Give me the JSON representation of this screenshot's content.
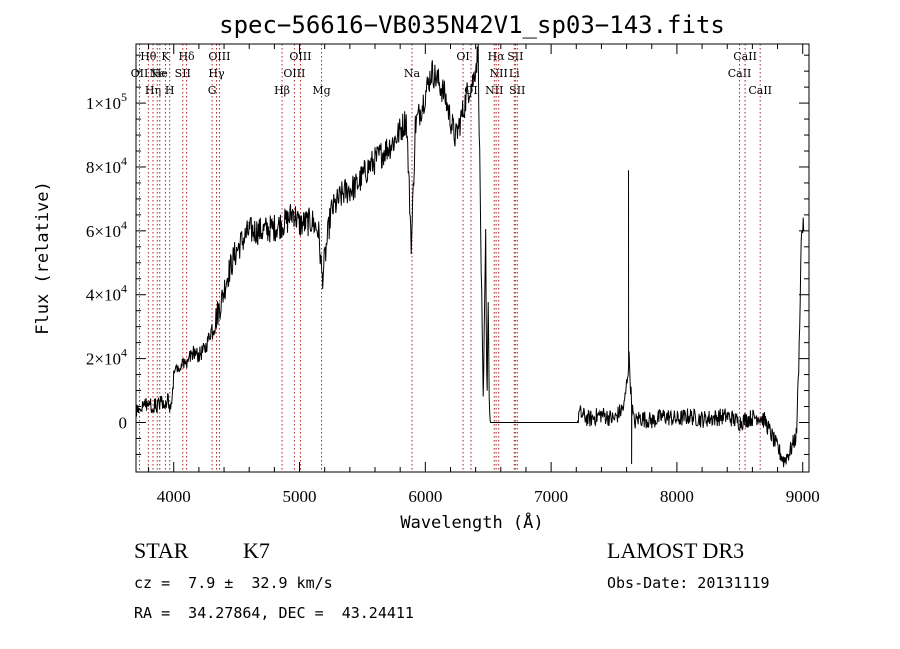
{
  "chart_data": {
    "type": "line",
    "title": "spec−56616−VB035N42V1_sp03−143.fits",
    "xlabel": "Wavelength (Å)",
    "ylabel": "Flux (relative)",
    "xlim": [
      3700,
      9050
    ],
    "ylim": [
      -15500,
      118500
    ],
    "xticks": [
      {
        "value": 4000,
        "label": "4000"
      },
      {
        "value": 5000,
        "label": "5000"
      },
      {
        "value": 6000,
        "label": "6000"
      },
      {
        "value": 7000,
        "label": "7000"
      },
      {
        "value": 8000,
        "label": "8000"
      },
      {
        "value": 9000,
        "label": "9000"
      }
    ],
    "yticks": [
      {
        "value": 0,
        "mant": "0",
        "exp": ""
      },
      {
        "value": 20000,
        "mant": "2×10",
        "exp": "4"
      },
      {
        "value": 40000,
        "mant": "4×10",
        "exp": "4"
      },
      {
        "value": 60000,
        "mant": "6×10",
        "exp": "4"
      },
      {
        "value": 80000,
        "mant": "8×10",
        "exp": "4"
      },
      {
        "value": 100000,
        "mant": "1×10",
        "exp": "5"
      }
    ],
    "spectrum_anchors": [
      [
        3700,
        3000
      ],
      [
        3750,
        6000
      ],
      [
        3800,
        5500
      ],
      [
        3850,
        5000
      ],
      [
        3900,
        6500
      ],
      [
        3950,
        7000
      ],
      [
        3980,
        4000
      ],
      [
        4000,
        15000
      ],
      [
        4050,
        18000
      ],
      [
        4100,
        19000
      ],
      [
        4150,
        22000
      ],
      [
        4200,
        21000
      ],
      [
        4250,
        23000
      ],
      [
        4290,
        28000
      ],
      [
        4330,
        32000
      ],
      [
        4380,
        38000
      ],
      [
        4420,
        45000
      ],
      [
        4480,
        52000
      ],
      [
        4530,
        56000
      ],
      [
        4600,
        60000
      ],
      [
        4700,
        60000
      ],
      [
        4800,
        61000
      ],
      [
        4900,
        63000
      ],
      [
        4950,
        66000
      ],
      [
        5000,
        62000
      ],
      [
        5100,
        63000
      ],
      [
        5150,
        60000
      ],
      [
        5180,
        45000
      ],
      [
        5250,
        66000
      ],
      [
        5350,
        72000
      ],
      [
        5450,
        74000
      ],
      [
        5550,
        80000
      ],
      [
        5650,
        84000
      ],
      [
        5750,
        88000
      ],
      [
        5850,
        95000
      ],
      [
        5890,
        55000
      ],
      [
        5920,
        93000
      ],
      [
        5980,
        100000
      ],
      [
        6050,
        110000
      ],
      [
        6100,
        107000
      ],
      [
        6150,
        103000
      ],
      [
        6200,
        95000
      ],
      [
        6240,
        89000
      ],
      [
        6290,
        96000
      ],
      [
        6340,
        104000
      ],
      [
        6380,
        107000
      ],
      [
        6420,
        116000
      ],
      [
        6440,
        60000
      ],
      [
        6460,
        4000
      ],
      [
        6480,
        58000
      ],
      [
        6490,
        5000
      ],
      [
        6500,
        40000
      ],
      [
        6510,
        1000
      ],
      [
        6520,
        0
      ],
      [
        7210,
        0
      ],
      [
        7220,
        3000
      ],
      [
        7300,
        1000
      ],
      [
        7400,
        2500
      ],
      [
        7500,
        1000
      ],
      [
        7580,
        5000
      ],
      [
        7600,
        12000
      ],
      [
        7620,
        20000
      ],
      [
        7640,
        6000
      ],
      [
        7660,
        0
      ],
      [
        7700,
        1500
      ],
      [
        7800,
        500
      ],
      [
        7900,
        2000
      ],
      [
        8000,
        1000
      ],
      [
        8100,
        2000
      ],
      [
        8200,
        1000
      ],
      [
        8300,
        1500
      ],
      [
        8400,
        2000
      ],
      [
        8500,
        0
      ],
      [
        8550,
        1000
      ],
      [
        8650,
        2000
      ],
      [
        8700,
        500
      ],
      [
        8800,
        -8000
      ],
      [
        8850,
        -12000
      ],
      [
        8900,
        -9000
      ],
      [
        8950,
        -4000
      ],
      [
        8970,
        20000
      ],
      [
        8990,
        60000
      ],
      [
        9010,
        62000
      ]
    ],
    "narrow_features": [
      {
        "x": 5890,
        "y": 50000
      },
      {
        "x": 7615,
        "y": 79000
      },
      {
        "x": 7640,
        "y": -13000
      }
    ],
    "reference_lines": [
      {
        "x": 3728,
        "label": "OII",
        "row": 1
      },
      {
        "x": 3798,
        "label": "Hθ",
        "row": 0
      },
      {
        "x": 3835,
        "label": "Hη",
        "row": 2
      },
      {
        "x": 3869,
        "label": "Ne",
        "row": 1
      },
      {
        "x": 3889,
        "label": "He",
        "row": 1
      },
      {
        "x": 3934,
        "label": "K",
        "row": 0
      },
      {
        "x": 3968,
        "label": "H",
        "row": 2
      },
      {
        "x": 4072,
        "label": "SII",
        "row": 1
      },
      {
        "x": 4102,
        "label": "Hδ",
        "row": 0
      },
      {
        "x": 4305,
        "label": "G",
        "row": 2
      },
      {
        "x": 4340,
        "label": "Hγ",
        "row": 1
      },
      {
        "x": 4363,
        "label": "OIII",
        "row": 0
      },
      {
        "x": 4861,
        "label": "Hβ",
        "row": 2
      },
      {
        "x": 4959,
        "label": "OIII",
        "row": 1
      },
      {
        "x": 5007,
        "label": "OIII",
        "row": 0
      },
      {
        "x": 5175,
        "label": "Mg",
        "row": 2
      },
      {
        "x": 5894,
        "label": "Na",
        "row": 1
      },
      {
        "x": 6300,
        "label": "OI",
        "row": 0
      },
      {
        "x": 6363,
        "label": "OI",
        "row": 2
      },
      {
        "x": 6548,
        "label": "NII",
        "row": 2
      },
      {
        "x": 6563,
        "label": "Hα",
        "row": 0
      },
      {
        "x": 6583,
        "label": "NII",
        "row": 1
      },
      {
        "x": 6707,
        "label": "Li",
        "row": 1
      },
      {
        "x": 6716,
        "label": "SII",
        "row": 0
      },
      {
        "x": 6731,
        "label": "SII",
        "row": 2
      },
      {
        "x": 8498,
        "label": "CaII",
        "row": 1
      },
      {
        "x": 8542,
        "label": "CaII",
        "row": 0
      },
      {
        "x": 8662,
        "label": "CaII",
        "row": 2
      }
    ],
    "colors": {
      "spectrum": "#000000",
      "reference_line": "#b22222",
      "axes": "#000000"
    }
  },
  "info": {
    "object_class": "STAR",
    "subclass": "K7",
    "survey": "LAMOST DR3",
    "redshift": "cz =  7.9 ±  32.9 km/s",
    "obs_date": "Obs-Date: 20131119",
    "coords": "RA =  34.27864, DEC =  43.24411"
  }
}
